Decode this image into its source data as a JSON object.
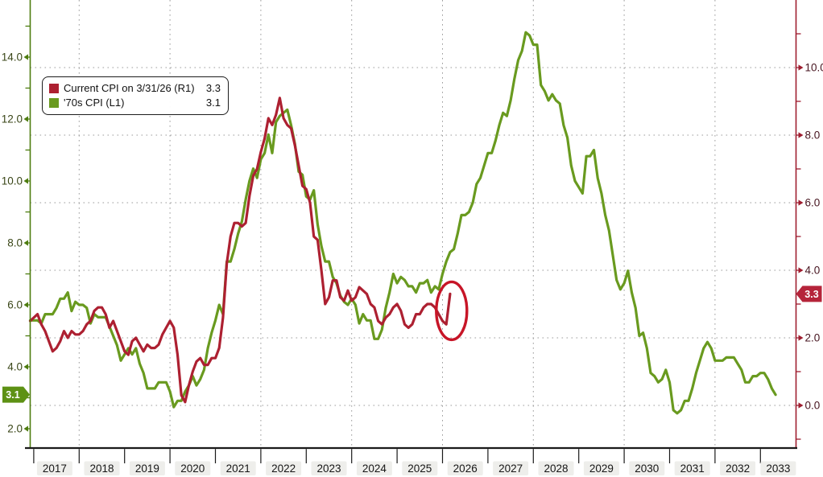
{
  "chart_data": {
    "type": "line",
    "title": "",
    "legend": {
      "items": [
        {
          "label": "Current CPI on 3/31/26 (R1)",
          "value": "3.3",
          "color": "#ad2031"
        },
        {
          "label": "'70s CPI (L1)",
          "value": "3.1",
          "color": "#699a1f"
        }
      ]
    },
    "x_axis": {
      "years": [
        "2017",
        "2018",
        "2019",
        "2020",
        "2021",
        "2022",
        "2023",
        "2024",
        "2025",
        "2026",
        "2027",
        "2028",
        "2029",
        "2030",
        "2031",
        "2032",
        "2033"
      ]
    },
    "left_axis": {
      "tick_labels": [
        "14.0",
        "12.0",
        "10.0",
        "8.0",
        "6.0",
        "4.0",
        "2.0"
      ],
      "badge_value": "3.1",
      "color": "#4d7c0f",
      "badge_color": "#5d9114"
    },
    "right_axis": {
      "tick_labels": [
        "10.0",
        "8.0",
        "6.0",
        "4.0",
        "2.0",
        "0.0"
      ],
      "badge_value": "3.3",
      "color": "#9e1d2f",
      "badge_color": "#b5243a"
    },
    "grid": {
      "horizontal_right_axis_values": [
        10,
        8,
        6,
        4,
        2,
        0
      ],
      "vertical_gridline_years": [
        2018,
        2020,
        2022,
        2024,
        2026,
        2028,
        2030,
        2032
      ]
    },
    "series": [
      {
        "name": "'70s CPI (L1)",
        "axis": "left",
        "color": "#699a1f",
        "start": "2017-01",
        "values": [
          5.5,
          5.5,
          5.4,
          5.7,
          5.7,
          5.7,
          5.9,
          6.2,
          6.2,
          6.4,
          5.8,
          6.1,
          6.0,
          6.0,
          5.9,
          5.4,
          5.7,
          5.6,
          5.6,
          5.6,
          5.3,
          5.0,
          4.7,
          4.2,
          4.4,
          4.6,
          4.4,
          4.6,
          4.1,
          3.8,
          3.3,
          3.3,
          3.3,
          3.5,
          3.5,
          3.5,
          3.2,
          2.7,
          2.9,
          2.9,
          3.2,
          3.4,
          3.7,
          3.4,
          3.6,
          3.9,
          4.6,
          5.1,
          5.5,
          6.0,
          5.7,
          7.4,
          7.4,
          7.8,
          8.3,
          8.7,
          9.4,
          10.0,
          10.4,
          10.1,
          10.7,
          10.9,
          11.5,
          10.9,
          11.9,
          12.1,
          12.2,
          12.3,
          11.8,
          11.2,
          10.3,
          10.2,
          9.5,
          9.4,
          9.7,
          8.6,
          7.9,
          7.4,
          7.4,
          6.9,
          6.7,
          6.3,
          6.1,
          6.0,
          6.2,
          6.0,
          5.4,
          5.7,
          5.5,
          5.5,
          4.9,
          4.9,
          5.2,
          5.9,
          6.4,
          7.0,
          6.7,
          6.9,
          6.8,
          6.6,
          6.6,
          6.4,
          6.7,
          6.7,
          6.8,
          6.4,
          6.6,
          6.5,
          7.0,
          7.4,
          7.7,
          7.8,
          8.3,
          8.9,
          8.9,
          9.0,
          9.3,
          9.9,
          10.1,
          10.5,
          10.9,
          10.9,
          11.3,
          11.8,
          12.2,
          12.1,
          12.6,
          13.3,
          13.9,
          14.2,
          14.8,
          14.7,
          14.4,
          14.4,
          13.1,
          12.9,
          12.6,
          12.8,
          12.6,
          12.5,
          11.8,
          11.4,
          10.5,
          10.0,
          9.8,
          9.6,
          10.8,
          10.8,
          11.0,
          10.1,
          9.6,
          8.9,
          8.4,
          7.6,
          6.8,
          6.5,
          6.7,
          7.1,
          6.4,
          5.9,
          5.0,
          5.1,
          4.6,
          3.8,
          3.7,
          3.5,
          3.6,
          3.9,
          3.5,
          2.6,
          2.5,
          2.6,
          2.9,
          2.9,
          3.3,
          3.8,
          4.2,
          4.6,
          4.8,
          4.6,
          4.2,
          4.2,
          4.2,
          4.3,
          4.3,
          4.3,
          4.1,
          3.9,
          3.5,
          3.5,
          3.7,
          3.7,
          3.8,
          3.8,
          3.6,
          3.3,
          3.1
        ]
      },
      {
        "name": "Current CPI on 3/31/26 (R1)",
        "axis": "right",
        "color": "#ad2031",
        "start": "2017-01",
        "values": [
          2.5,
          2.7,
          2.4,
          2.2,
          1.9,
          1.6,
          1.7,
          1.9,
          2.2,
          2.0,
          2.2,
          2.1,
          2.1,
          2.2,
          2.4,
          2.5,
          2.8,
          2.9,
          2.9,
          2.7,
          2.3,
          2.5,
          2.2,
          1.9,
          1.6,
          1.5,
          1.9,
          2.0,
          1.8,
          1.6,
          1.8,
          1.7,
          1.7,
          1.8,
          2.1,
          2.3,
          2.5,
          2.3,
          1.5,
          0.3,
          0.1,
          0.6,
          1.0,
          1.3,
          1.4,
          1.2,
          1.2,
          1.4,
          1.4,
          1.7,
          2.6,
          4.2,
          5.0,
          5.4,
          5.4,
          5.3,
          5.4,
          6.2,
          6.8,
          7.0,
          7.5,
          7.9,
          8.5,
          8.3,
          8.6,
          9.1,
          8.5,
          8.3,
          8.2,
          7.7,
          7.1,
          6.5,
          6.4,
          6.0,
          5.0,
          4.9,
          4.0,
          3.0,
          3.2,
          3.7,
          3.7,
          3.2,
          3.1,
          3.4,
          3.1,
          3.2,
          3.5,
          3.4,
          3.3,
          3.0,
          2.9,
          2.5,
          2.4,
          2.6,
          2.7,
          2.9,
          3.0,
          2.8,
          2.4,
          2.3,
          2.4,
          2.7,
          2.7,
          2.9,
          3.0,
          3.0,
          2.9,
          2.7,
          2.5,
          2.4,
          3.3
        ]
      }
    ],
    "annotation_ellipse": {
      "time": 2026.2,
      "axis": "right",
      "value": 2.8,
      "color": "#c71527"
    }
  }
}
